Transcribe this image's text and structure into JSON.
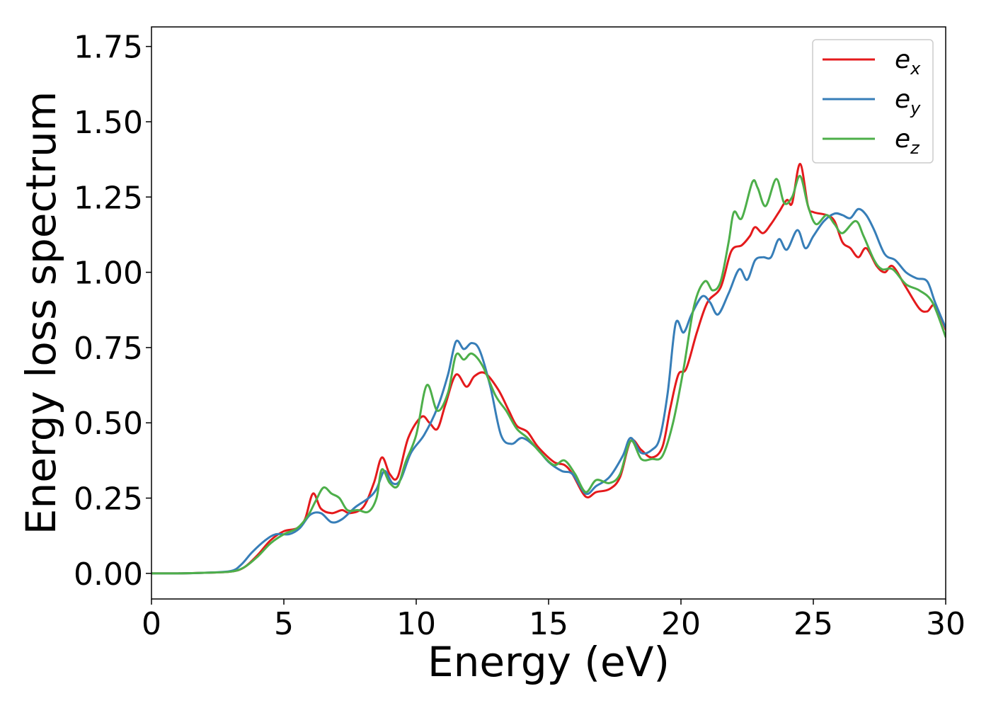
{
  "chart_data": {
    "type": "line",
    "xlabel": "Energy (eV)",
    "ylabel": "Energy loss spectrum",
    "xlim": [
      0,
      30
    ],
    "ylim": [
      -0.085,
      1.815
    ],
    "x_ticks": [
      0,
      5,
      10,
      15,
      20,
      25,
      30
    ],
    "x_tick_labels": [
      "0",
      "5",
      "10",
      "15",
      "20",
      "25",
      "30"
    ],
    "y_ticks": [
      0.0,
      0.25,
      0.5,
      0.75,
      1.0,
      1.25,
      1.5,
      1.75
    ],
    "y_tick_labels": [
      "0.00",
      "0.25",
      "0.50",
      "0.75",
      "1.00",
      "1.25",
      "1.50",
      "1.75"
    ],
    "grid": false,
    "legend_position": "top-right",
    "series": [
      {
        "name": "e_x",
        "legend_base": "e",
        "legend_sub": "x",
        "color": "#e41a1c",
        "points": [
          [
            0,
            0
          ],
          [
            1,
            0
          ],
          [
            2,
            0.002
          ],
          [
            3,
            0.006
          ],
          [
            3.5,
            0.02
          ],
          [
            4,
            0.06
          ],
          [
            4.5,
            0.11
          ],
          [
            5,
            0.14
          ],
          [
            5.5,
            0.15
          ],
          [
            5.8,
            0.18
          ],
          [
            6.1,
            0.265
          ],
          [
            6.4,
            0.215
          ],
          [
            6.8,
            0.2
          ],
          [
            7.2,
            0.21
          ],
          [
            7.5,
            0.2
          ],
          [
            8,
            0.22
          ],
          [
            8.4,
            0.3
          ],
          [
            8.7,
            0.385
          ],
          [
            9,
            0.33
          ],
          [
            9.3,
            0.32
          ],
          [
            9.7,
            0.45
          ],
          [
            10.2,
            0.52
          ],
          [
            10.5,
            0.5
          ],
          [
            10.8,
            0.48
          ],
          [
            11.1,
            0.56
          ],
          [
            11.5,
            0.66
          ],
          [
            11.9,
            0.62
          ],
          [
            12.2,
            0.655
          ],
          [
            12.6,
            0.665
          ],
          [
            13.1,
            0.61
          ],
          [
            13.5,
            0.54
          ],
          [
            13.8,
            0.49
          ],
          [
            14.2,
            0.47
          ],
          [
            14.6,
            0.42
          ],
          [
            15.2,
            0.37
          ],
          [
            15.6,
            0.36
          ],
          [
            15.9,
            0.33
          ],
          [
            16.4,
            0.255
          ],
          [
            16.8,
            0.27
          ],
          [
            17.3,
            0.28
          ],
          [
            17.7,
            0.32
          ],
          [
            18.1,
            0.44
          ],
          [
            18.5,
            0.41
          ],
          [
            18.9,
            0.385
          ],
          [
            19.3,
            0.42
          ],
          [
            19.6,
            0.55
          ],
          [
            19.9,
            0.66
          ],
          [
            20.2,
            0.68
          ],
          [
            20.6,
            0.8
          ],
          [
            21.0,
            0.9
          ],
          [
            21.5,
            0.95
          ],
          [
            21.9,
            1.07
          ],
          [
            22.3,
            1.09
          ],
          [
            22.6,
            1.12
          ],
          [
            22.8,
            1.15
          ],
          [
            23.1,
            1.13
          ],
          [
            23.4,
            1.16
          ],
          [
            23.7,
            1.2
          ],
          [
            24.0,
            1.24
          ],
          [
            24.2,
            1.23
          ],
          [
            24.5,
            1.36
          ],
          [
            24.8,
            1.22
          ],
          [
            25.0,
            1.2
          ],
          [
            25.5,
            1.19
          ],
          [
            25.8,
            1.17
          ],
          [
            26.1,
            1.1
          ],
          [
            26.4,
            1.08
          ],
          [
            26.7,
            1.05
          ],
          [
            27.0,
            1.08
          ],
          [
            27.4,
            1.02
          ],
          [
            27.7,
            1.0
          ],
          [
            28.0,
            1.02
          ],
          [
            28.5,
            0.95
          ],
          [
            29.0,
            0.88
          ],
          [
            29.3,
            0.87
          ],
          [
            29.6,
            0.89
          ],
          [
            30,
            0.81
          ]
        ]
      },
      {
        "name": "e_y",
        "legend_base": "e",
        "legend_sub": "y",
        "color": "#377eb8",
        "points": [
          [
            0,
            0
          ],
          [
            1,
            0
          ],
          [
            2,
            0.002
          ],
          [
            3,
            0.008
          ],
          [
            3.4,
            0.03
          ],
          [
            3.8,
            0.07
          ],
          [
            4.3,
            0.11
          ],
          [
            4.7,
            0.13
          ],
          [
            5.2,
            0.13
          ],
          [
            5.6,
            0.15
          ],
          [
            6.0,
            0.195
          ],
          [
            6.4,
            0.2
          ],
          [
            6.8,
            0.17
          ],
          [
            7.2,
            0.18
          ],
          [
            7.7,
            0.22
          ],
          [
            8.2,
            0.25
          ],
          [
            8.5,
            0.28
          ],
          [
            8.8,
            0.34
          ],
          [
            9.1,
            0.3
          ],
          [
            9.4,
            0.31
          ],
          [
            9.8,
            0.4
          ],
          [
            10.3,
            0.46
          ],
          [
            10.8,
            0.55
          ],
          [
            11.2,
            0.66
          ],
          [
            11.5,
            0.77
          ],
          [
            11.8,
            0.745
          ],
          [
            12.1,
            0.765
          ],
          [
            12.4,
            0.74
          ],
          [
            12.8,
            0.62
          ],
          [
            13.2,
            0.46
          ],
          [
            13.6,
            0.43
          ],
          [
            14.0,
            0.45
          ],
          [
            14.5,
            0.42
          ],
          [
            15.0,
            0.37
          ],
          [
            15.5,
            0.34
          ],
          [
            15.9,
            0.33
          ],
          [
            16.4,
            0.265
          ],
          [
            16.8,
            0.29
          ],
          [
            17.3,
            0.32
          ],
          [
            17.8,
            0.39
          ],
          [
            18.1,
            0.45
          ],
          [
            18.5,
            0.4
          ],
          [
            18.9,
            0.41
          ],
          [
            19.2,
            0.45
          ],
          [
            19.5,
            0.6
          ],
          [
            19.8,
            0.83
          ],
          [
            20.1,
            0.8
          ],
          [
            20.4,
            0.86
          ],
          [
            20.8,
            0.92
          ],
          [
            21.1,
            0.9
          ],
          [
            21.4,
            0.86
          ],
          [
            21.8,
            0.93
          ],
          [
            22.2,
            1.01
          ],
          [
            22.5,
            0.975
          ],
          [
            22.8,
            1.04
          ],
          [
            23.1,
            1.05
          ],
          [
            23.4,
            1.05
          ],
          [
            23.7,
            1.11
          ],
          [
            24.0,
            1.075
          ],
          [
            24.4,
            1.14
          ],
          [
            24.7,
            1.08
          ],
          [
            25.0,
            1.12
          ],
          [
            25.4,
            1.17
          ],
          [
            25.8,
            1.195
          ],
          [
            26.1,
            1.19
          ],
          [
            26.4,
            1.18
          ],
          [
            26.7,
            1.21
          ],
          [
            27.0,
            1.19
          ],
          [
            27.3,
            1.14
          ],
          [
            27.7,
            1.06
          ],
          [
            28.1,
            1.04
          ],
          [
            28.5,
            1.0
          ],
          [
            28.9,
            0.98
          ],
          [
            29.3,
            0.97
          ],
          [
            29.6,
            0.9
          ],
          [
            30,
            0.815
          ]
        ]
      },
      {
        "name": "e_z",
        "legend_base": "e",
        "legend_sub": "z",
        "color": "#4daf4a",
        "points": [
          [
            0,
            0
          ],
          [
            1,
            0
          ],
          [
            2,
            0.002
          ],
          [
            3,
            0.006
          ],
          [
            3.5,
            0.02
          ],
          [
            4,
            0.055
          ],
          [
            4.5,
            0.1
          ],
          [
            5,
            0.13
          ],
          [
            5.5,
            0.15
          ],
          [
            5.9,
            0.19
          ],
          [
            6.2,
            0.24
          ],
          [
            6.5,
            0.285
          ],
          [
            6.8,
            0.265
          ],
          [
            7.1,
            0.25
          ],
          [
            7.4,
            0.21
          ],
          [
            7.8,
            0.21
          ],
          [
            8.2,
            0.205
          ],
          [
            8.5,
            0.25
          ],
          [
            8.7,
            0.345
          ],
          [
            9.0,
            0.3
          ],
          [
            9.3,
            0.29
          ],
          [
            9.6,
            0.37
          ],
          [
            10.0,
            0.46
          ],
          [
            10.4,
            0.625
          ],
          [
            10.8,
            0.54
          ],
          [
            11.2,
            0.6
          ],
          [
            11.5,
            0.725
          ],
          [
            11.8,
            0.71
          ],
          [
            12.1,
            0.73
          ],
          [
            12.5,
            0.69
          ],
          [
            13.0,
            0.59
          ],
          [
            13.4,
            0.54
          ],
          [
            13.8,
            0.48
          ],
          [
            14.2,
            0.45
          ],
          [
            14.7,
            0.4
          ],
          [
            15.2,
            0.36
          ],
          [
            15.6,
            0.375
          ],
          [
            16.0,
            0.33
          ],
          [
            16.4,
            0.27
          ],
          [
            16.8,
            0.31
          ],
          [
            17.3,
            0.3
          ],
          [
            17.7,
            0.33
          ],
          [
            18.1,
            0.44
          ],
          [
            18.5,
            0.38
          ],
          [
            18.9,
            0.38
          ],
          [
            19.3,
            0.39
          ],
          [
            19.7,
            0.5
          ],
          [
            20.1,
            0.68
          ],
          [
            20.5,
            0.89
          ],
          [
            20.9,
            0.97
          ],
          [
            21.2,
            0.94
          ],
          [
            21.5,
            0.97
          ],
          [
            21.8,
            1.1
          ],
          [
            22.0,
            1.2
          ],
          [
            22.3,
            1.18
          ],
          [
            22.7,
            1.3
          ],
          [
            22.9,
            1.28
          ],
          [
            23.2,
            1.22
          ],
          [
            23.6,
            1.31
          ],
          [
            23.9,
            1.23
          ],
          [
            24.2,
            1.25
          ],
          [
            24.5,
            1.32
          ],
          [
            24.8,
            1.22
          ],
          [
            25.1,
            1.16
          ],
          [
            25.5,
            1.19
          ],
          [
            25.8,
            1.16
          ],
          [
            26.1,
            1.13
          ],
          [
            26.6,
            1.17
          ],
          [
            26.9,
            1.12
          ],
          [
            27.3,
            1.04
          ],
          [
            27.6,
            1.01
          ],
          [
            28.0,
            1.01
          ],
          [
            28.5,
            0.96
          ],
          [
            29.0,
            0.94
          ],
          [
            29.5,
            0.9
          ],
          [
            30,
            0.785
          ]
        ]
      }
    ]
  }
}
